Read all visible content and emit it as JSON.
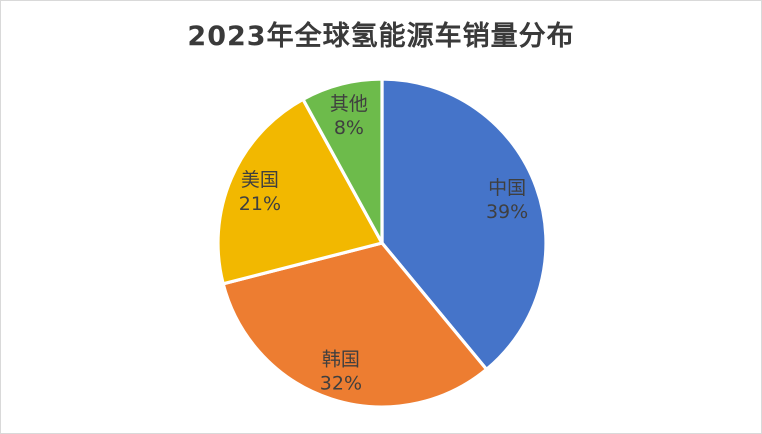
{
  "frame": {
    "background": "#FFFFFF",
    "border_color": "#D9D9D9"
  },
  "chart_data": {
    "type": "pie",
    "title": "2023年全球氢能源车销量分布",
    "categories": [
      "中国",
      "韩国",
      "美国",
      "其他"
    ],
    "values": [
      39,
      32,
      21,
      8
    ],
    "value_suffix": "%",
    "label_format": "{category} {value}%",
    "labels_visible": [
      "中国 39%",
      "韩国 32%",
      "美国 21%",
      "其他 8%"
    ],
    "slice_colors": [
      "#4574C9",
      "#ED7D31",
      "#F2B800",
      "#6DBB4B"
    ],
    "slice_border_color": "#FFFFFF",
    "label_color": "#3F3F3F",
    "title_color": "#3A3A3A",
    "start_angle_deg": 0,
    "direction": "clockwise",
    "legend": "none",
    "grid": "off"
  }
}
